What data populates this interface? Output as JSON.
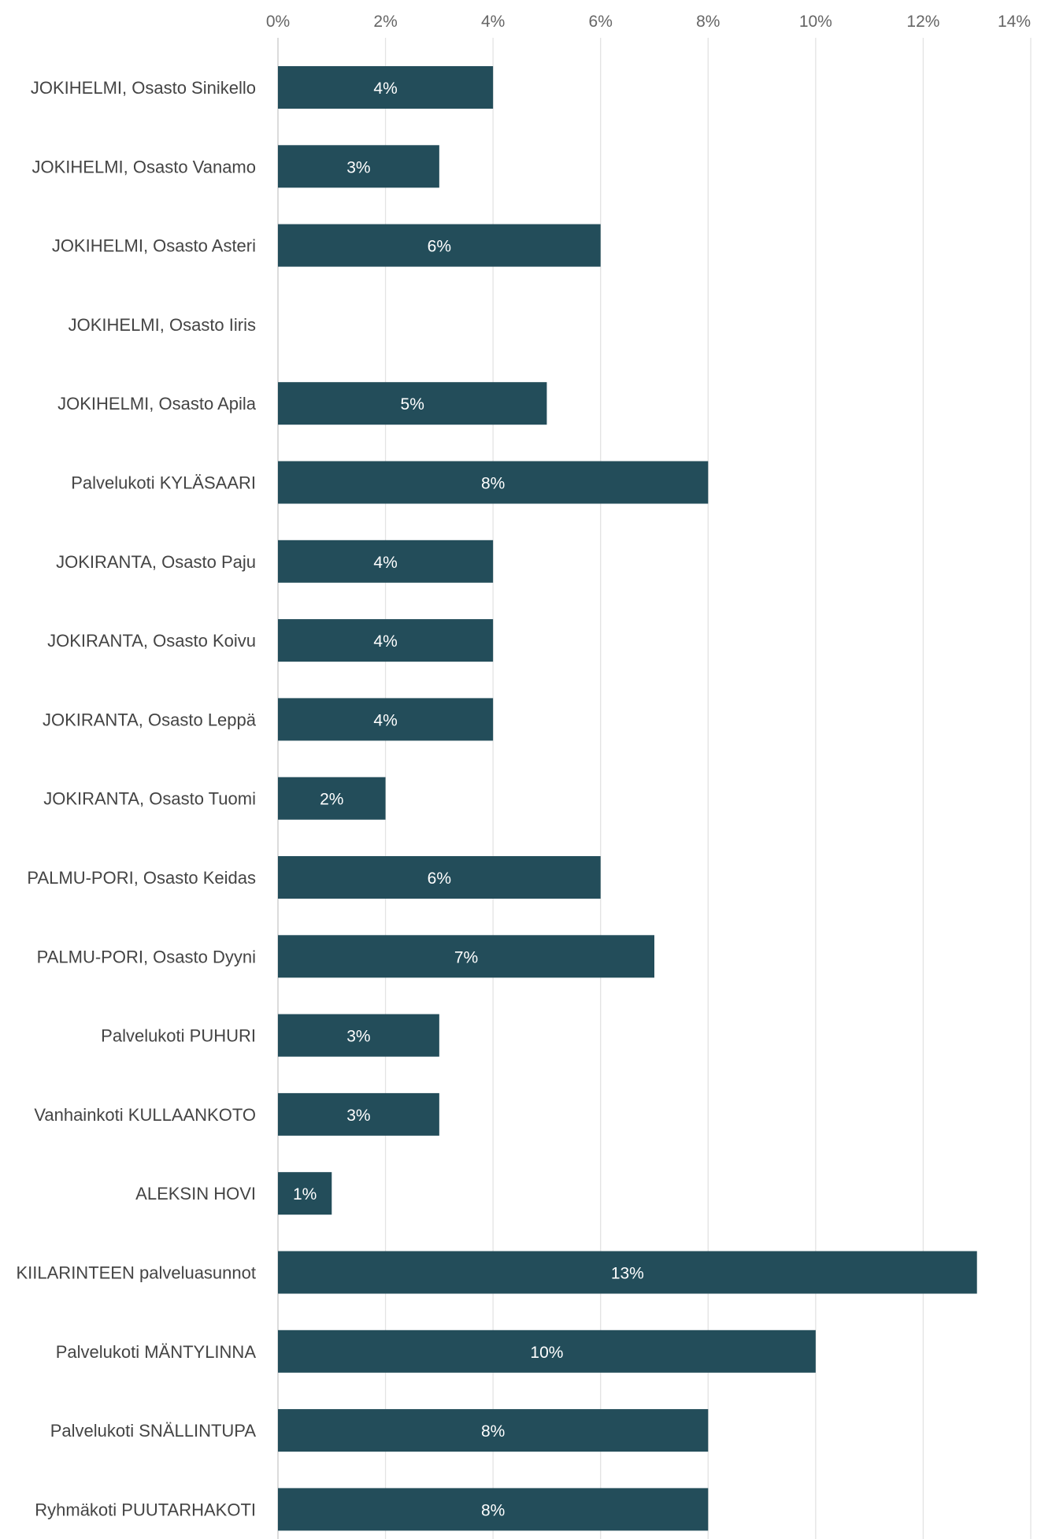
{
  "chart_data": {
    "type": "bar",
    "orientation": "horizontal",
    "title": "",
    "xlabel": "",
    "ylabel": "",
    "xlim": [
      0,
      14
    ],
    "x_ticks": [
      "0%",
      "2%",
      "4%",
      "6%",
      "8%",
      "10%",
      "12%",
      "14%"
    ],
    "x_tick_values": [
      0,
      2,
      4,
      6,
      8,
      10,
      12,
      14
    ],
    "grid": true,
    "legend": "none",
    "categories": [
      "JOKIHELMI, Osasto Sinikello",
      "JOKIHELMI, Osasto Vanamo",
      "JOKIHELMI, Osasto Asteri",
      "JOKIHELMI, Osasto Iiris",
      "JOKIHELMI, Osasto Apila",
      "Palvelukoti KYLÄSAARI",
      "JOKIRANTA, Osasto Paju",
      "JOKIRANTA, Osasto Koivu",
      "JOKIRANTA, Osasto Leppä",
      "JOKIRANTA, Osasto Tuomi",
      "PALMU-PORI, Osasto Keidas",
      "PALMU-PORI, Osasto Dyyni",
      "Palvelukoti PUHURI",
      "Vanhainkoti KULLAANKOTO",
      "ALEKSIN HOVI",
      "KIILARINTEEN palveluasunnot",
      "Palvelukoti MÄNTYLINNA",
      "Palvelukoti SNÄLLINTUPA",
      "Ryhmäkoti PUUTARHAKOTI"
    ],
    "values": [
      4,
      3,
      6,
      0,
      5,
      8,
      4,
      4,
      4,
      2,
      6,
      7,
      3,
      3,
      1,
      13,
      10,
      8,
      8
    ],
    "data_labels": [
      "4%",
      "3%",
      "6%",
      "",
      "5%",
      "8%",
      "4%",
      "4%",
      "4%",
      "2%",
      "6%",
      "7%",
      "3%",
      "3%",
      "1%",
      "13%",
      "10%",
      "8%",
      "8%"
    ],
    "colors": {
      "bar": "#234d5a",
      "gridline": "#e3e3e3",
      "tick_text": "#666666",
      "category_text": "#444444",
      "data_label_text": "#ffffff"
    }
  }
}
